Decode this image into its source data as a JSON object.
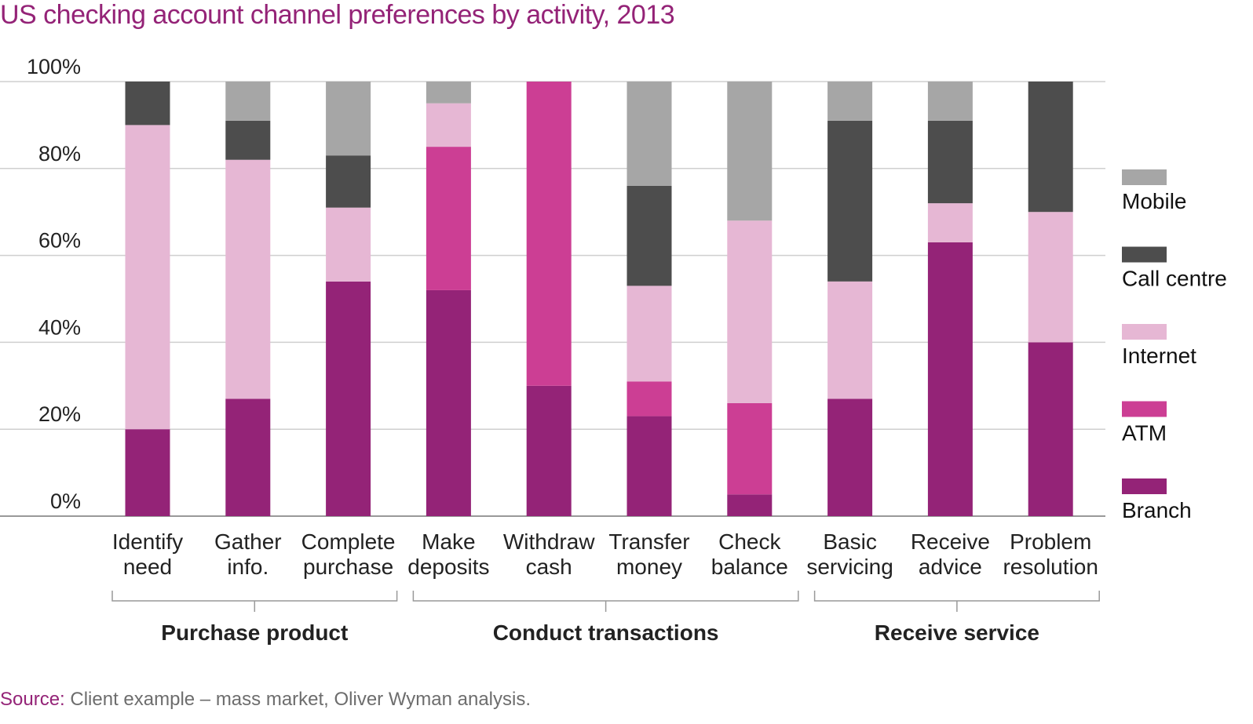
{
  "title": "US checking account channel preferences by activity, 2013",
  "source": {
    "label": "Source:",
    "text": " Client example – mass market, Oliver Wyman analysis."
  },
  "chart_data": {
    "type": "bar",
    "stacked": true,
    "title": "US checking account channel preferences by activity, 2013",
    "xlabel": "",
    "ylabel": "",
    "ylim": [
      0,
      100
    ],
    "yticks": [
      "0%",
      "20%",
      "40%",
      "60%",
      "80%",
      "100%"
    ],
    "grid": true,
    "legend_position": "right",
    "categories": [
      [
        "Identify",
        "need"
      ],
      [
        "Gather",
        "info."
      ],
      [
        "Complete",
        "purchase"
      ],
      [
        "Make",
        "deposits"
      ],
      [
        "Withdraw",
        "cash"
      ],
      [
        "Transfer",
        "money"
      ],
      [
        "Check",
        "balance"
      ],
      [
        "Basic",
        "servicing"
      ],
      [
        "Receive",
        "advice"
      ],
      [
        "Problem",
        "resolution"
      ]
    ],
    "groups": [
      {
        "name": "Purchase product",
        "start": 0,
        "end": 2
      },
      {
        "name": "Conduct transactions",
        "start": 3,
        "end": 6
      },
      {
        "name": "Receive service",
        "start": 7,
        "end": 9
      }
    ],
    "series": [
      {
        "name": "Branch",
        "color": "#942377",
        "values": [
          20,
          27,
          54,
          52,
          30,
          23,
          5,
          27,
          63,
          40
        ]
      },
      {
        "name": "ATM",
        "color": "#cc3e94",
        "values": [
          0,
          0,
          0,
          33,
          70,
          8,
          21,
          0,
          0,
          0
        ]
      },
      {
        "name": "Internet",
        "color": "#e6b7d4",
        "values": [
          70,
          55,
          17,
          10,
          0,
          22,
          42,
          27,
          9,
          30
        ]
      },
      {
        "name": "Call centre",
        "color": "#4d4d4d",
        "values": [
          10,
          9,
          12,
          0,
          0,
          23,
          0,
          37,
          19,
          30
        ]
      },
      {
        "name": "Mobile",
        "color": "#a6a6a6",
        "values": [
          0,
          9,
          17,
          5,
          0,
          24,
          32,
          9,
          9,
          0
        ]
      }
    ]
  }
}
